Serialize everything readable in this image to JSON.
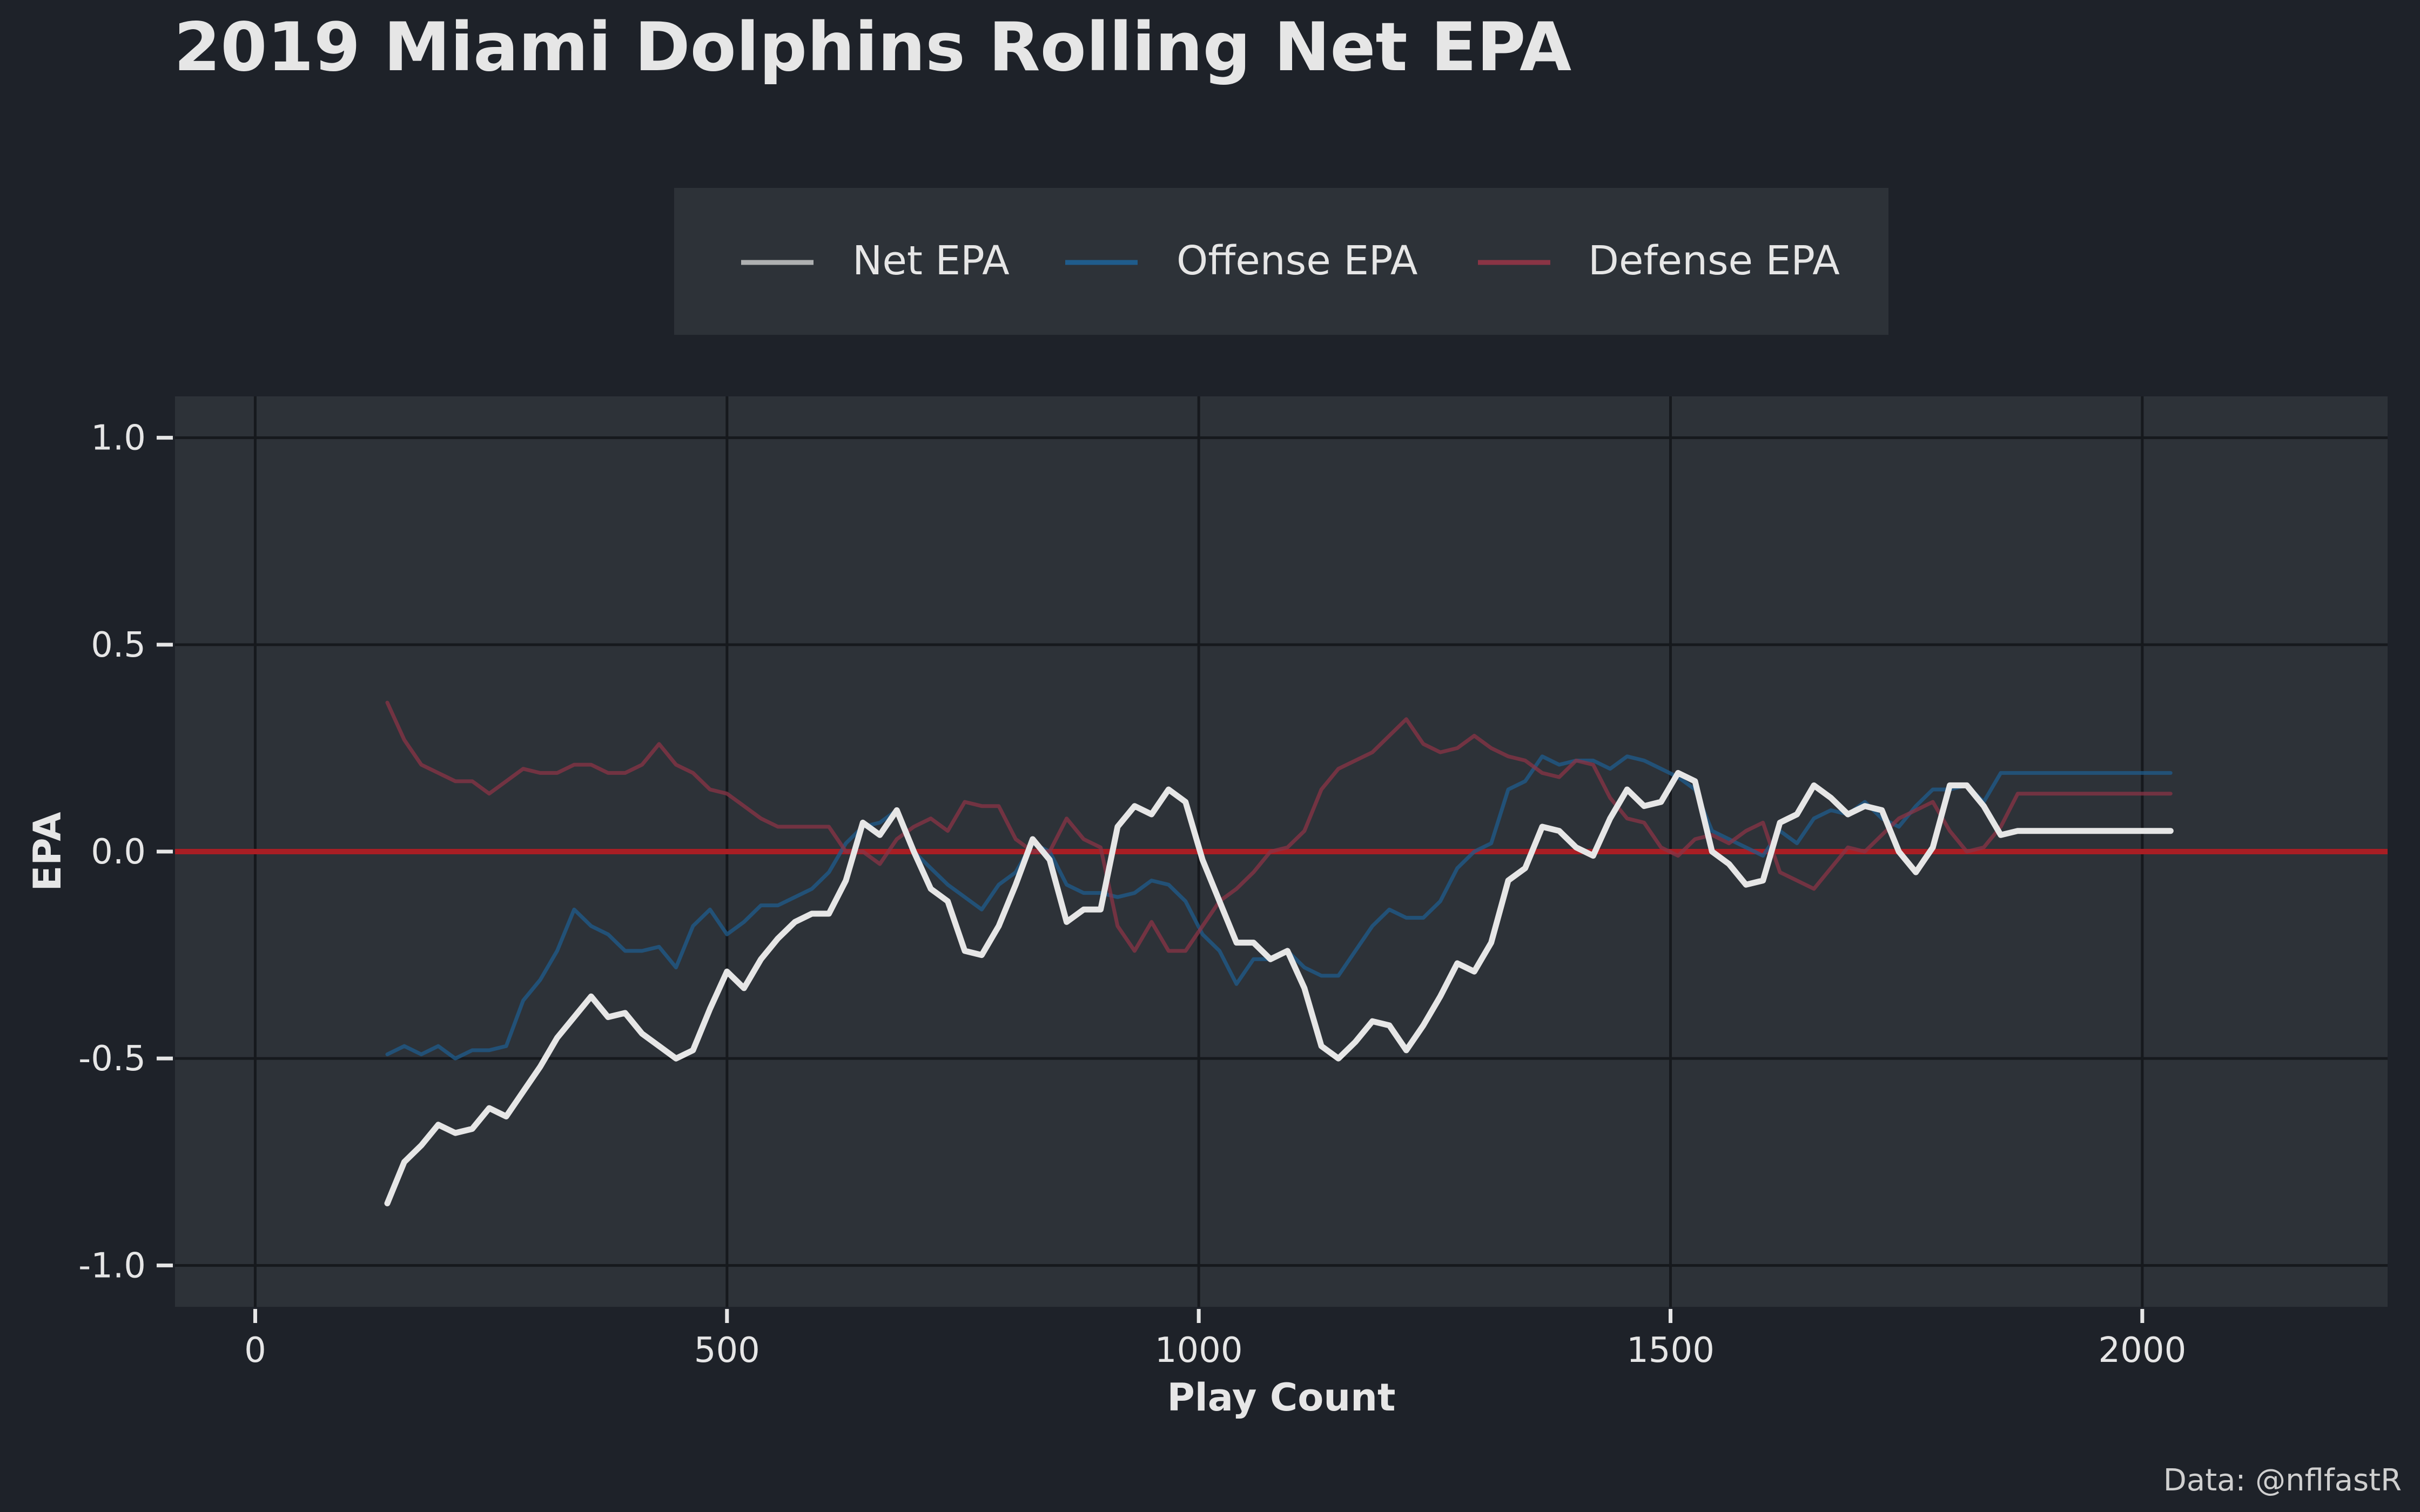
{
  "chart_data": {
    "type": "line",
    "title": "2019 Miami Dolphins Rolling Net EPA",
    "xlabel": "Play Count",
    "ylabel": "EPA",
    "caption": "Data: @nflfastR",
    "xlim": [
      -85,
      2260
    ],
    "ylim": [
      -1.1,
      1.1
    ],
    "x_ticks": [
      0,
      500,
      1000,
      1500,
      2000
    ],
    "x_tick_labels": [
      "0",
      "500",
      "1000",
      "1500",
      "2000"
    ],
    "y_ticks": [
      -1.0,
      -0.5,
      0.0,
      0.5,
      1.0
    ],
    "y_tick_labels": [
      "-1.0",
      "-0.5",
      "0.0",
      "0.5",
      "1.0"
    ],
    "grid": true,
    "legend_position": "top",
    "reference_line": {
      "y": 0,
      "color": "#a81e24"
    },
    "x": [
      140,
      158,
      176,
      194,
      212,
      230,
      248,
      266,
      284,
      302,
      320,
      338,
      356,
      374,
      392,
      410,
      428,
      446,
      464,
      482,
      500,
      518,
      536,
      554,
      572,
      590,
      608,
      626,
      644,
      662,
      680,
      698,
      716,
      734,
      752,
      770,
      788,
      806,
      824,
      842,
      860,
      878,
      896,
      914,
      932,
      950,
      968,
      986,
      1004,
      1022,
      1040,
      1058,
      1076,
      1094,
      1112,
      1130,
      1148,
      1166,
      1184,
      1202,
      1220,
      1238,
      1256,
      1274,
      1292,
      1310,
      1328,
      1346,
      1364,
      1382,
      1400,
      1418,
      1436,
      1454,
      1472,
      1490,
      1508,
      1526,
      1544,
      1562,
      1580,
      1598,
      1616,
      1634,
      1652,
      1670,
      1688,
      1706,
      1724,
      1742,
      1760,
      1778,
      1796,
      1814,
      1832,
      1850,
      1868,
      1886,
      1904,
      1922,
      1940,
      1958,
      1976,
      1994,
      2012,
      2030
    ],
    "series": [
      {
        "name": "Net EPA",
        "color": "#e6e6e6",
        "values": [
          -0.85,
          -0.75,
          -0.71,
          -0.66,
          -0.68,
          -0.67,
          -0.62,
          -0.64,
          -0.58,
          -0.52,
          -0.45,
          -0.4,
          -0.35,
          -0.4,
          -0.39,
          -0.44,
          -0.47,
          -0.5,
          -0.48,
          -0.38,
          -0.29,
          -0.33,
          -0.26,
          -0.21,
          -0.17,
          -0.15,
          -0.15,
          -0.07,
          0.07,
          0.04,
          0.1,
          0.0,
          -0.09,
          -0.12,
          -0.24,
          -0.25,
          -0.18,
          -0.08,
          0.03,
          -0.02,
          -0.17,
          -0.14,
          -0.14,
          0.06,
          0.11,
          0.09,
          0.15,
          0.12,
          -0.02,
          -0.12,
          -0.22,
          -0.22,
          -0.26,
          -0.24,
          -0.33,
          -0.47,
          -0.5,
          -0.46,
          -0.41,
          -0.42,
          -0.48,
          -0.42,
          -0.35,
          -0.27,
          -0.29,
          -0.22,
          -0.07,
          -0.04,
          0.06,
          0.05,
          0.01,
          -0.01,
          0.08,
          0.15,
          0.11,
          0.12,
          0.19,
          0.17,
          0.0,
          -0.03,
          -0.08,
          -0.07,
          0.07,
          0.09,
          0.16,
          0.13,
          0.09,
          0.11,
          0.1,
          0.0,
          -0.05,
          0.01,
          0.16,
          0.16,
          0.11,
          0.04,
          0.05,
          0.05,
          0.05,
          0.05,
          0.05,
          0.05,
          0.05,
          0.05,
          0.05,
          0.05
        ]
      },
      {
        "name": "Offense EPA",
        "color": "#1f5c8c",
        "values": [
          -0.49,
          -0.47,
          -0.49,
          -0.47,
          -0.5,
          -0.48,
          -0.48,
          -0.47,
          -0.36,
          -0.31,
          -0.24,
          -0.14,
          -0.18,
          -0.2,
          -0.24,
          -0.24,
          -0.23,
          -0.28,
          -0.18,
          -0.14,
          -0.2,
          -0.17,
          -0.13,
          -0.13,
          -0.11,
          -0.09,
          -0.05,
          0.02,
          0.06,
          0.07,
          0.1,
          0.0,
          -0.04,
          -0.08,
          -0.11,
          -0.14,
          -0.08,
          -0.05,
          0.02,
          0.0,
          -0.08,
          -0.1,
          -0.1,
          -0.11,
          -0.1,
          -0.07,
          -0.08,
          -0.12,
          -0.2,
          -0.24,
          -0.32,
          -0.26,
          -0.26,
          -0.24,
          -0.28,
          -0.3,
          -0.3,
          -0.24,
          -0.18,
          -0.14,
          -0.16,
          -0.16,
          -0.12,
          -0.04,
          0.0,
          0.02,
          0.15,
          0.17,
          0.23,
          0.21,
          0.22,
          0.22,
          0.2,
          0.23,
          0.22,
          0.2,
          0.18,
          0.15,
          0.05,
          0.03,
          0.01,
          -0.01,
          0.05,
          0.02,
          0.08,
          0.1,
          0.09,
          0.12,
          0.08,
          0.06,
          0.11,
          0.15,
          0.15,
          0.16,
          0.12,
          0.19,
          0.19,
          0.19,
          0.19,
          0.19,
          0.19,
          0.19,
          0.19,
          0.19,
          0.19,
          0.19
        ]
      },
      {
        "name": "Defense EPA",
        "color": "#8a3445",
        "values": [
          0.36,
          0.27,
          0.21,
          0.19,
          0.17,
          0.17,
          0.14,
          0.17,
          0.2,
          0.19,
          0.19,
          0.21,
          0.21,
          0.19,
          0.19,
          0.21,
          0.26,
          0.21,
          0.19,
          0.15,
          0.14,
          0.11,
          0.08,
          0.06,
          0.06,
          0.06,
          0.06,
          0.0,
          0.0,
          -0.03,
          0.03,
          0.06,
          0.08,
          0.05,
          0.12,
          0.11,
          0.11,
          0.03,
          0.0,
          0.0,
          0.08,
          0.03,
          0.01,
          -0.18,
          -0.24,
          -0.17,
          -0.24,
          -0.24,
          -0.18,
          -0.12,
          -0.09,
          -0.05,
          0.0,
          0.01,
          0.05,
          0.15,
          0.2,
          0.22,
          0.24,
          0.28,
          0.32,
          0.26,
          0.24,
          0.25,
          0.28,
          0.25,
          0.23,
          0.22,
          0.19,
          0.18,
          0.22,
          0.21,
          0.13,
          0.08,
          0.07,
          0.01,
          -0.01,
          0.03,
          0.04,
          0.02,
          0.05,
          0.07,
          -0.05,
          -0.07,
          -0.09,
          -0.04,
          0.01,
          0.0,
          0.04,
          0.08,
          0.1,
          0.12,
          0.05,
          0.0,
          0.01,
          0.06,
          0.14,
          0.14,
          0.14,
          0.14,
          0.14,
          0.14,
          0.14,
          0.14,
          0.14,
          0.14
        ]
      }
    ]
  }
}
